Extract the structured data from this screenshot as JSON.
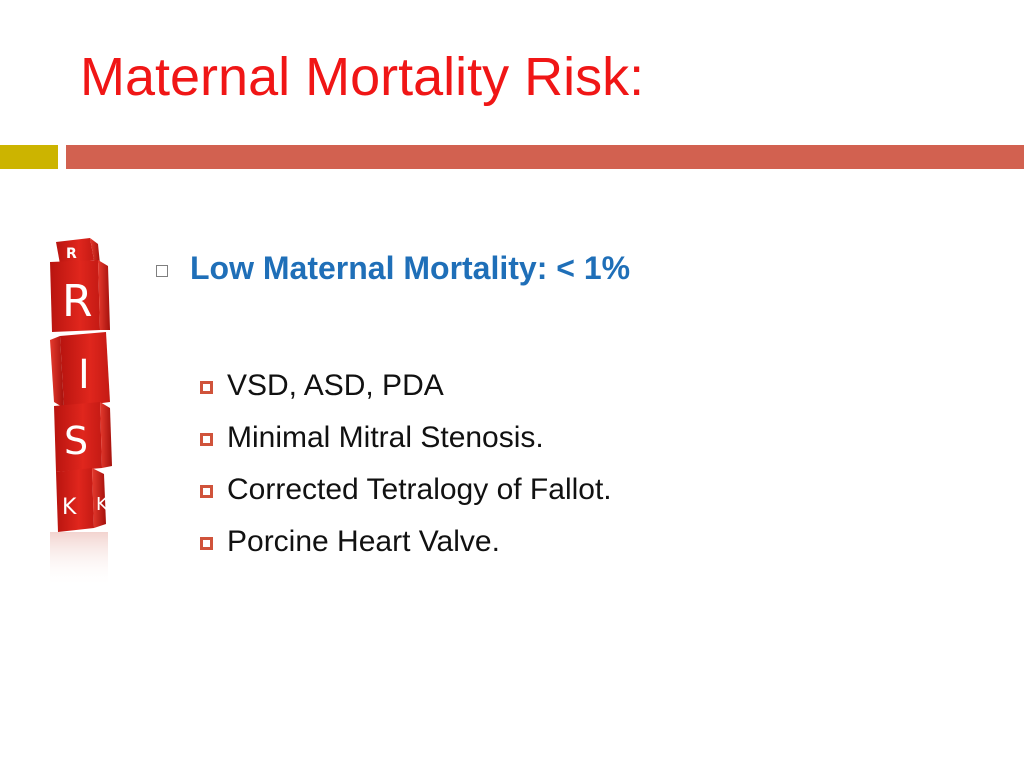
{
  "slide": {
    "title": "Maternal Mortality Risk:",
    "heading": "Low Maternal Mortality: < 1%",
    "items": [
      "VSD, ASD, PDA",
      "Minimal Mitral Stenosis.",
      "Corrected Tetralogy of Fallot.",
      "Porcine Heart Valve."
    ],
    "illustration": {
      "letters": [
        "R",
        "I",
        "S",
        "K"
      ]
    }
  },
  "colors": {
    "title": "#f01616",
    "heading": "#1f6fb8",
    "bar_left": "#ccb400",
    "bar_right": "#d26150",
    "bullet": "#d0533b",
    "dice": "#d8231c"
  }
}
